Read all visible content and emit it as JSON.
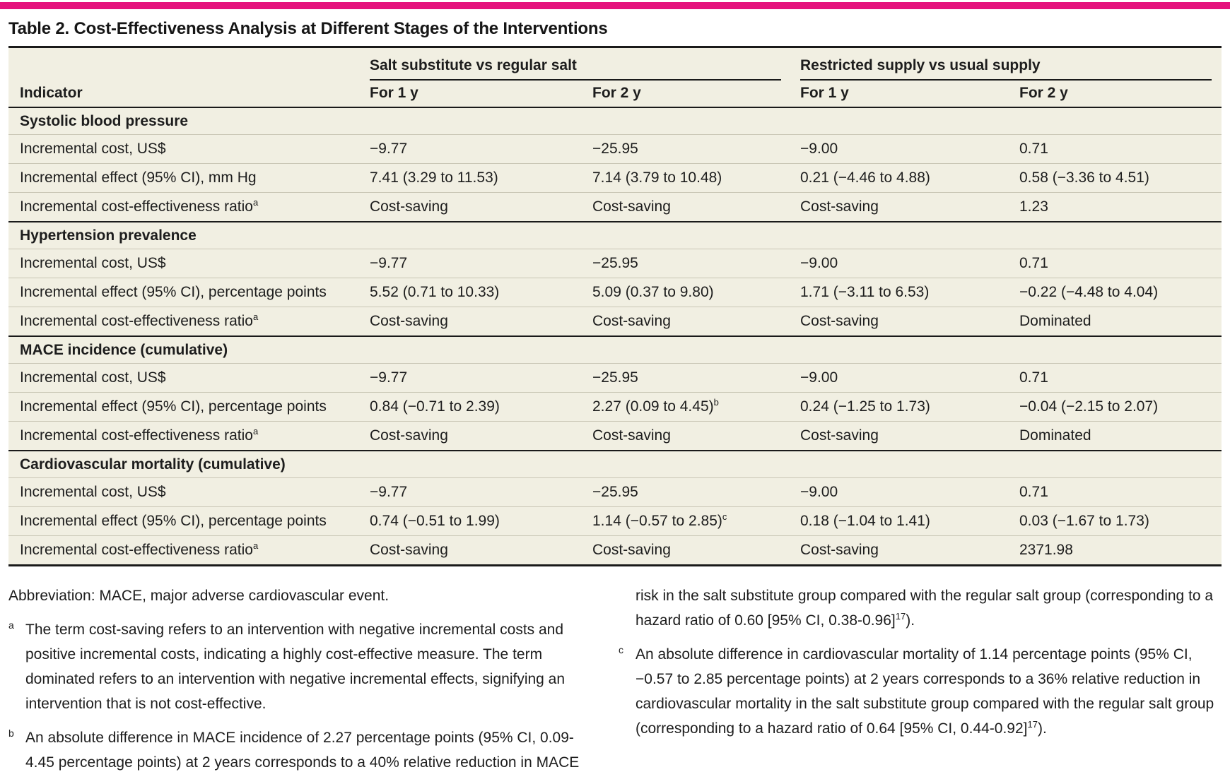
{
  "colors": {
    "accent": "#E5127D",
    "table_background": "#F1EFE2",
    "rule": "#1A1A1A",
    "hairline": "#C9C6B5",
    "text": "#1D1D1D"
  },
  "table": {
    "title": "Table 2. Cost-Effectiveness Analysis at Different Stages of the Interventions",
    "indicator_header": "Indicator",
    "groups": [
      "Salt substitute vs regular salt",
      "Restricted supply vs usual supply"
    ],
    "sub_headers": [
      "For 1 y",
      "For 2 y",
      "For 1 y",
      "For 2 y"
    ],
    "sections": [
      {
        "label": "Systolic blood pressure",
        "rows": [
          {
            "label": {
              "text": "Incremental cost, US$"
            },
            "cells": [
              {
                "text": "−9.77"
              },
              {
                "text": "−25.95"
              },
              {
                "text": "−9.00"
              },
              {
                "text": "0.71"
              }
            ]
          },
          {
            "label": {
              "text": "Incremental effect (95% CI), mm Hg"
            },
            "cells": [
              {
                "text": "7.41 (3.29 to 11.53)"
              },
              {
                "text": "7.14 (3.79 to 10.48)"
              },
              {
                "text": "0.21 (−4.46 to 4.88)"
              },
              {
                "text": "0.58 (−3.36 to 4.51)"
              }
            ]
          },
          {
            "label": {
              "text": "Incremental cost-effectiveness ratio",
              "sup": "a"
            },
            "cells": [
              {
                "text": "Cost-saving"
              },
              {
                "text": "Cost-saving"
              },
              {
                "text": "Cost-saving"
              },
              {
                "text": "1.23"
              }
            ]
          }
        ]
      },
      {
        "label": "Hypertension prevalence",
        "rows": [
          {
            "label": {
              "text": "Incremental cost, US$"
            },
            "cells": [
              {
                "text": "−9.77"
              },
              {
                "text": "−25.95"
              },
              {
                "text": "−9.00"
              },
              {
                "text": "0.71"
              }
            ]
          },
          {
            "label": {
              "text": "Incremental effect (95% CI), percentage points"
            },
            "cells": [
              {
                "text": "5.52 (0.71 to 10.33)"
              },
              {
                "text": "5.09 (0.37 to 9.80)"
              },
              {
                "text": "1.71 (−3.11 to 6.53)"
              },
              {
                "text": "−0.22 (−4.48 to 4.04)"
              }
            ]
          },
          {
            "label": {
              "text": "Incremental cost-effectiveness ratio",
              "sup": "a"
            },
            "cells": [
              {
                "text": "Cost-saving"
              },
              {
                "text": "Cost-saving"
              },
              {
                "text": "Cost-saving"
              },
              {
                "text": "Dominated"
              }
            ]
          }
        ]
      },
      {
        "label": "MACE incidence (cumulative)",
        "rows": [
          {
            "label": {
              "text": "Incremental cost, US$"
            },
            "cells": [
              {
                "text": "−9.77"
              },
              {
                "text": "−25.95"
              },
              {
                "text": "−9.00"
              },
              {
                "text": "0.71"
              }
            ]
          },
          {
            "label": {
              "text": "Incremental effect (95% CI), percentage points"
            },
            "cells": [
              {
                "text": "0.84 (−0.71 to 2.39)"
              },
              {
                "text": "2.27 (0.09 to 4.45)",
                "sup": "b"
              },
              {
                "text": "0.24 (−1.25 to 1.73)"
              },
              {
                "text": "−0.04 (−2.15 to 2.07)"
              }
            ]
          },
          {
            "label": {
              "text": "Incremental cost-effectiveness ratio",
              "sup": "a"
            },
            "cells": [
              {
                "text": "Cost-saving"
              },
              {
                "text": "Cost-saving"
              },
              {
                "text": "Cost-saving"
              },
              {
                "text": "Dominated"
              }
            ]
          }
        ]
      },
      {
        "label": "Cardiovascular mortality (cumulative)",
        "rows": [
          {
            "label": {
              "text": "Incremental cost, US$"
            },
            "cells": [
              {
                "text": "−9.77"
              },
              {
                "text": "−25.95"
              },
              {
                "text": "−9.00"
              },
              {
                "text": "0.71"
              }
            ]
          },
          {
            "label": {
              "text": "Incremental effect (95% CI), percentage points"
            },
            "cells": [
              {
                "text": "0.74 (−0.51 to 1.99)"
              },
              {
                "text": "1.14 (−0.57 to 2.85)",
                "sup": "c"
              },
              {
                "text": "0.18 (−1.04 to 1.41)"
              },
              {
                "text": "0.03 (−1.67 to 1.73)"
              }
            ]
          },
          {
            "label": {
              "text": "Incremental cost-effectiveness ratio",
              "sup": "a"
            },
            "cells": [
              {
                "text": "Cost-saving"
              },
              {
                "text": "Cost-saving"
              },
              {
                "text": "Cost-saving"
              },
              {
                "text": "2371.98"
              }
            ]
          }
        ]
      }
    ]
  },
  "footnotes": {
    "abbreviation": {
      "text": "Abbreviation: MACE, major adverse cardiovascular event."
    },
    "a": {
      "marker": "a",
      "text": "The term cost-saving refers to an intervention with negative incremental costs and positive incremental costs, indicating a highly cost-effective measure. The term dominated refers to an intervention with negative incremental effects, signifying an intervention that is not cost-effective."
    },
    "b_left": {
      "marker": "b",
      "text": "An absolute difference in MACE incidence of 2.27 percentage points (95% CI, 0.09-4.45 percentage points) at 2 years corresponds to a 40% relative reduction in MACE"
    },
    "b_right": {
      "text": "risk in the salt substitute group compared with the regular salt group (corresponding to a hazard ratio of 0.60 [95% CI, 0.38-0.96]",
      "sup": "17",
      "post": ")."
    },
    "c": {
      "marker": "c",
      "text": "An absolute difference in cardiovascular mortality of 1.14 percentage points (95% CI, −0.57 to 2.85 percentage points) at 2 years corresponds to a 36% relative reduction in cardiovascular mortality in the salt substitute group compared with the regular salt group (corresponding to a hazard ratio of 0.64 [95% CI, 0.44-0.92]",
      "sup": "17",
      "post": ")."
    }
  }
}
